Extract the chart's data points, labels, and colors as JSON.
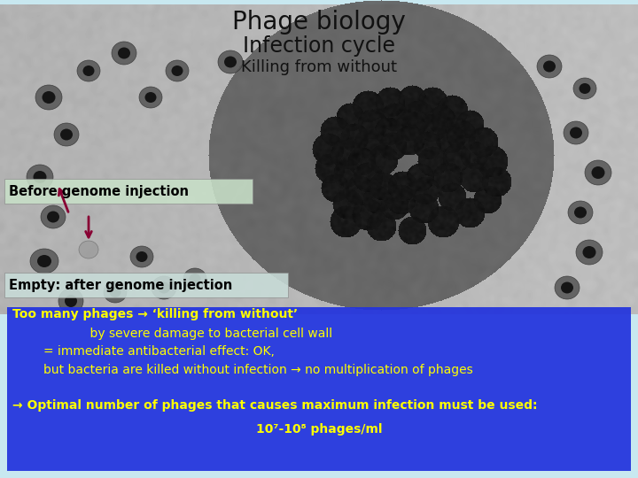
{
  "title1": "Phage biology",
  "title2": "Infection cycle",
  "title3": "Killing from without",
  "label1": "Empty: after genome injection",
  "label2": "Before genome injection",
  "box_line1": "Too many phages → ‘killing from without’",
  "box_line2": "                    by severe damage to bacterial cell wall",
  "box_line3": "        = immediate antibacterial effect: OK,",
  "box_line4": "        but bacteria are killed without infection → no multiplication of phages",
  "box_line5": "→ Optimal number of phages that causes maximum infection must be used:",
  "box_line6": "10⁷-10⁸ phages/ml",
  "bg_top_color": "#c8e8f0",
  "bg_mid_color": "#aaaaaa",
  "box_bg_color": "#2233dd",
  "box_text_color": "#ffff00",
  "label1_bg": "#c8dcd8",
  "label2_bg": "#c8e0c8",
  "arrow_color": "#880033",
  "title_color": "#111111"
}
